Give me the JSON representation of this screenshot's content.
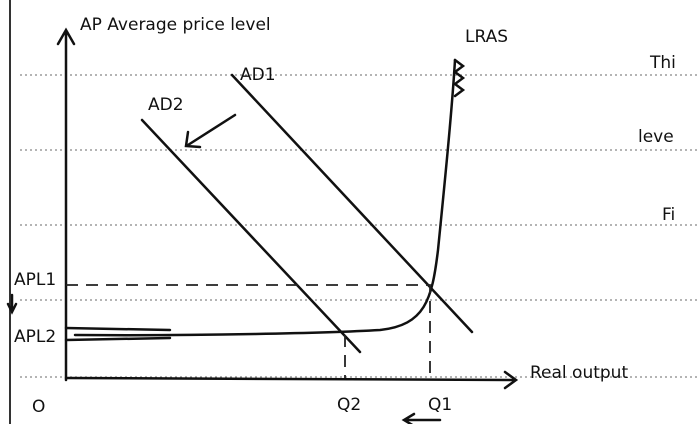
{
  "y_axis_label": "AP Average price level",
  "x_axis_label": "Real output",
  "origin": "O",
  "curves": [
    {
      "label": "LRAS"
    },
    {
      "label": "AD1"
    },
    {
      "label": "AD2"
    }
  ],
  "y_marks": [
    "APL1",
    "APL2"
  ],
  "x_marks": [
    "Q2",
    "Q1"
  ],
  "margin_notes": [
    "Thi",
    "leve",
    "Fi"
  ]
}
